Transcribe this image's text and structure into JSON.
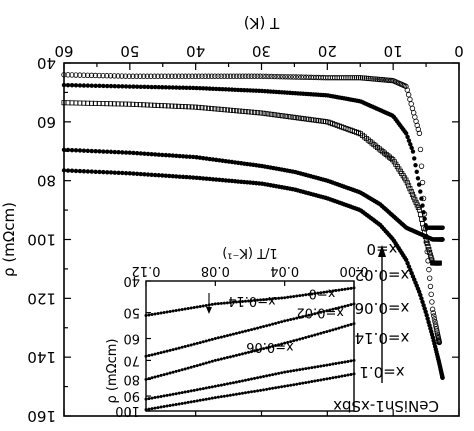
{
  "chart_data": [
    {
      "type": "scatter",
      "title": "",
      "xlabel": "T (K)",
      "ylabel": "ρ (mΩcm)",
      "xlim": [
        0,
        60
      ],
      "ylim": [
        160,
        40
      ],
      "x_ticks": [
        "0",
        "10",
        "20",
        "30",
        "40",
        "50",
        "60"
      ],
      "y_ticks": [
        "40",
        "60",
        "80",
        "100",
        "120",
        "140",
        "160"
      ],
      "grid": false,
      "series_labels": [
        "x=0",
        "x=0.02",
        "x=0.06",
        "x=0.14",
        "x=0.1"
      ],
      "compound_label": "CeNiSn1-xSbx",
      "series": [
        {
          "name": "x=0",
          "marker": "open-circle",
          "x": [
            3,
            4,
            5,
            6,
            8,
            10,
            15,
            20,
            30,
            40,
            50,
            60
          ],
          "y": [
            135,
            124,
            100,
            64,
            48,
            46,
            45,
            45,
            44.5,
            44.5,
            44.5,
            44
          ]
        },
        {
          "name": "x=0.02",
          "marker": "filled-circle",
          "x": [
            2.5,
            3.5,
            5,
            6,
            7,
            8,
            10,
            15,
            20,
            30,
            40,
            50,
            60
          ],
          "y": [
            96,
            96,
            96,
            82,
            70,
            64,
            58,
            53,
            51,
            49.5,
            48.5,
            48,
            47.5
          ]
        },
        {
          "name": "x=0.06",
          "marker": "open-square",
          "x": [
            3,
            4,
            5,
            6,
            8,
            10,
            15,
            20,
            30,
            40,
            50,
            60
          ],
          "y": [
            108,
            108,
            100,
            90,
            80,
            73,
            64,
            60,
            57,
            55,
            54,
            53.5
          ]
        },
        {
          "name": "x=0.14",
          "marker": "filled-circle",
          "x": [
            2.5,
            4,
            6,
            8,
            10,
            12,
            15,
            20,
            25,
            30,
            40,
            50,
            60
          ],
          "y": [
            100,
            100,
            98,
            96,
            92,
            88,
            84,
            80,
            77,
            75,
            72,
            70.5,
            69.5
          ]
        },
        {
          "name": "x=0.1",
          "marker": "filled-circle",
          "x": [
            2.5,
            3,
            4,
            5,
            6,
            8,
            10,
            12,
            15,
            20,
            25,
            30,
            40,
            50,
            60
          ],
          "y": [
            147,
            142,
            133,
            125,
            118,
            107,
            100,
            95,
            90,
            86,
            83,
            81,
            79,
            77.5,
            76.5
          ]
        }
      ]
    },
    {
      "type": "scatter",
      "title": "",
      "xlabel": "1/T (K⁻¹)",
      "ylabel": "ρ (mΩcm)",
      "xlim": [
        0,
        0.12
      ],
      "ylim": [
        100,
        40
      ],
      "log_y": true,
      "x_ticks": [
        "0.00",
        "0.04",
        "0.08",
        "0.12"
      ],
      "y_ticks": [
        "40",
        "50",
        "60",
        "70",
        "80",
        "90",
        "100"
      ],
      "annotation": "x=0.14",
      "series": [
        {
          "name": "x=0",
          "x": [
            0.0,
            0.04,
            0.08,
            0.12
          ],
          "y": [
            42,
            45,
            47,
            51
          ]
        },
        {
          "name": "x=0.02",
          "x": [
            0.0,
            0.04,
            0.08,
            0.12
          ],
          "y": [
            47,
            53,
            60,
            68
          ]
        },
        {
          "name": "x=0.06",
          "x": [
            0.0,
            0.04,
            0.08,
            0.12
          ],
          "y": [
            54,
            62,
            70,
            80
          ]
        },
        {
          "name": "x=0.14",
          "x": [
            0.0,
            0.04,
            0.08,
            0.12
          ],
          "y": [
            70,
            76,
            84,
            92
          ]
        },
        {
          "name": "x=0.1",
          "x": [
            0.0,
            0.04,
            0.08,
            0.12
          ],
          "y": [
            77,
            84,
            91,
            99
          ]
        }
      ]
    }
  ]
}
